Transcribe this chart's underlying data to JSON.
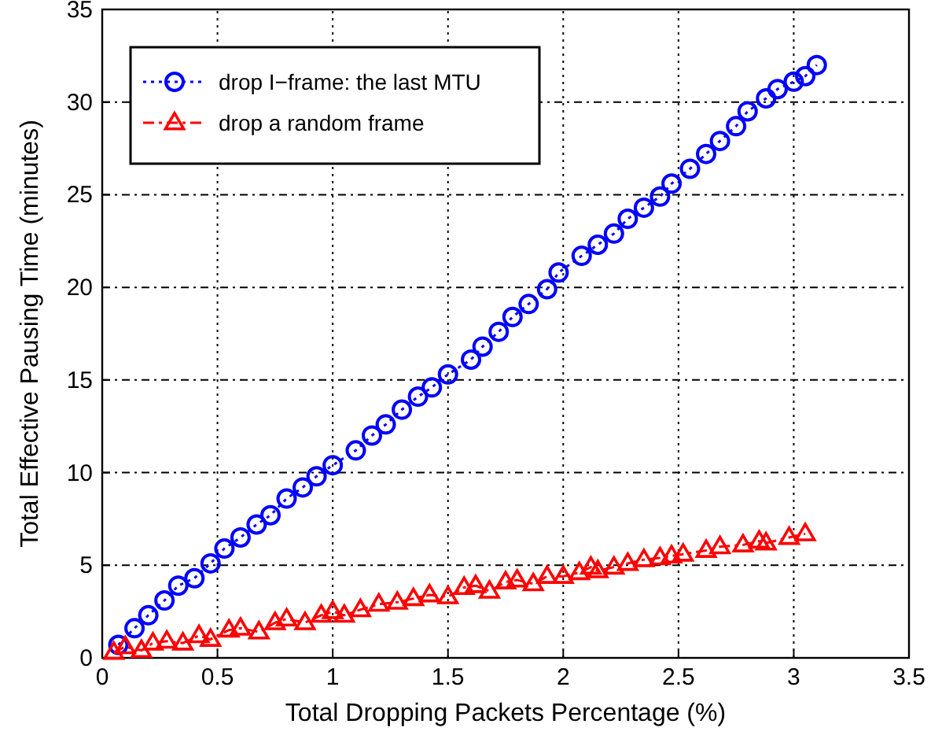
{
  "chart_data": {
    "type": "line",
    "xlabel": "Total Dropping Packets Percentage (%)",
    "ylabel": "Total Effective Pausing Time (minutes)",
    "xlim": [
      0,
      3.5
    ],
    "xticks": [
      0,
      0.5,
      1,
      1.5,
      2,
      2.5,
      3,
      3.5
    ],
    "ylim": [
      0,
      35
    ],
    "yticks": [
      0,
      5,
      10,
      15,
      20,
      25,
      30,
      35
    ],
    "grid": true,
    "legend": "top left",
    "series": [
      {
        "name": "drop I−frame: the last MTU",
        "color": "#0000ff",
        "marker": "circle",
        "line_style": "dotted",
        "x": [
          0.07,
          0.14,
          0.2,
          0.27,
          0.33,
          0.4,
          0.47,
          0.53,
          0.6,
          0.67,
          0.73,
          0.8,
          0.87,
          0.93,
          1.0,
          1.1,
          1.17,
          1.23,
          1.3,
          1.37,
          1.43,
          1.5,
          1.6,
          1.65,
          1.72,
          1.78,
          1.85,
          1.93,
          1.98,
          2.08,
          2.15,
          2.22,
          2.28,
          2.35,
          2.42,
          2.47,
          2.55,
          2.62,
          2.68,
          2.75,
          2.8,
          2.88,
          2.93,
          3.0,
          3.05,
          3.1
        ],
        "values": [
          0.7,
          1.6,
          2.3,
          3.1,
          3.9,
          4.3,
          5.1,
          5.9,
          6.5,
          7.2,
          7.7,
          8.6,
          9.2,
          9.8,
          10.4,
          11.2,
          12.0,
          12.6,
          13.4,
          14.1,
          14.6,
          15.3,
          16.1,
          16.8,
          17.6,
          18.4,
          19.1,
          19.9,
          20.8,
          21.7,
          22.3,
          22.9,
          23.7,
          24.3,
          24.9,
          25.6,
          26.4,
          27.2,
          27.9,
          28.7,
          29.5,
          30.2,
          30.7,
          31.1,
          31.4,
          32.0
        ]
      },
      {
        "name": "drop a random frame",
        "color": "#ff0000",
        "marker": "triangle",
        "line_style": "dashed",
        "x": [
          0.05,
          0.1,
          0.17,
          0.22,
          0.28,
          0.35,
          0.42,
          0.47,
          0.55,
          0.6,
          0.68,
          0.75,
          0.8,
          0.88,
          0.95,
          1.0,
          1.05,
          1.12,
          1.2,
          1.28,
          1.35,
          1.42,
          1.5,
          1.57,
          1.62,
          1.68,
          1.75,
          1.8,
          1.87,
          1.93,
          2.0,
          2.07,
          2.12,
          2.15,
          2.22,
          2.28,
          2.35,
          2.42,
          2.47,
          2.52,
          2.62,
          2.68,
          2.78,
          2.85,
          2.88,
          2.98,
          3.05
        ],
        "values": [
          0.3,
          0.6,
          0.4,
          0.8,
          0.9,
          0.8,
          1.2,
          1.0,
          1.5,
          1.6,
          1.4,
          1.9,
          2.1,
          1.9,
          2.3,
          2.5,
          2.3,
          2.6,
          2.9,
          3.0,
          3.2,
          3.4,
          3.3,
          3.8,
          3.9,
          3.6,
          4.1,
          4.2,
          4.0,
          4.4,
          4.4,
          4.6,
          4.9,
          4.7,
          4.9,
          5.1,
          5.3,
          5.4,
          5.5,
          5.6,
          5.8,
          6.0,
          6.1,
          6.3,
          6.2,
          6.5,
          6.7
        ]
      }
    ]
  }
}
